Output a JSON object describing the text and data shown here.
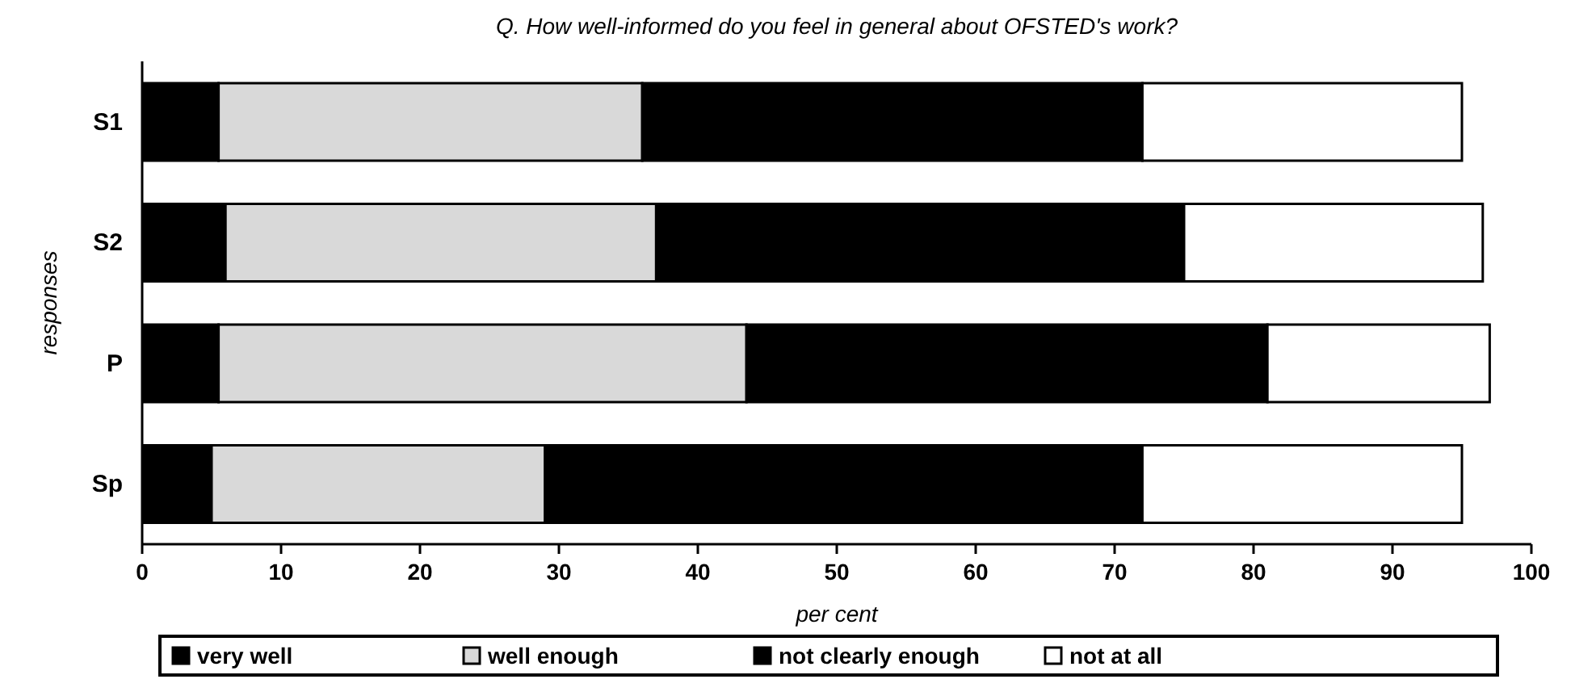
{
  "chart_data": {
    "type": "bar",
    "orientation": "horizontal",
    "stacked": true,
    "title": "Q. How well-informed do you feel in general about OFSTED's work?",
    "xlabel": "per cent",
    "ylabel": "responses",
    "categories": [
      "S1",
      "S2",
      "P",
      "Sp"
    ],
    "series": [
      {
        "name": "very well",
        "color": "#000000",
        "values": [
          5.5,
          6,
          5.5,
          5
        ]
      },
      {
        "name": "well enough",
        "color": "#d9d9d9",
        "values": [
          30.5,
          31,
          38,
          24
        ]
      },
      {
        "name": "not clearly enough",
        "color": "#000000",
        "values": [
          36,
          38,
          37.5,
          43
        ]
      },
      {
        "name": "not at all",
        "color": "#ffffff",
        "values": [
          23,
          21.5,
          16,
          23
        ]
      }
    ],
    "xlim": [
      0,
      100
    ],
    "xticks": [
      0,
      10,
      20,
      30,
      40,
      50,
      60,
      70,
      80,
      90,
      100
    ],
    "grid": false,
    "legend": "bottom"
  }
}
